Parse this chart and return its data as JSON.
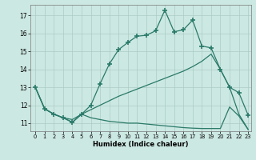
{
  "xlabel": "Humidex (Indice chaleur)",
  "background_color": "#cce8e2",
  "grid_color": "#aaccC4",
  "line_color": "#2a7a6a",
  "xlim_min": -0.5,
  "xlim_max": 23.3,
  "ylim_min": 10.55,
  "ylim_max": 17.6,
  "yticks": [
    11,
    12,
    13,
    14,
    15,
    16,
    17
  ],
  "xticks": [
    0,
    1,
    2,
    3,
    4,
    5,
    6,
    7,
    8,
    9,
    10,
    11,
    12,
    13,
    14,
    15,
    16,
    17,
    18,
    19,
    20,
    21,
    22,
    23
  ],
  "line1_x": [
    0,
    1,
    2,
    3,
    4,
    5,
    6,
    7,
    8,
    9,
    10,
    11,
    12,
    13,
    14,
    15,
    16,
    17,
    18,
    19,
    20,
    21,
    22,
    23
  ],
  "line1_y": [
    13.0,
    11.8,
    11.5,
    11.3,
    11.05,
    11.5,
    12.0,
    13.2,
    14.3,
    15.1,
    15.5,
    15.85,
    15.9,
    16.15,
    17.3,
    16.1,
    16.2,
    16.75,
    15.3,
    15.2,
    14.0,
    13.0,
    12.7,
    11.45
  ],
  "line2_x": [
    0,
    1,
    2,
    3,
    4,
    5,
    6,
    7,
    8,
    9,
    10,
    11,
    12,
    13,
    14,
    15,
    16,
    17,
    18,
    19,
    20,
    21,
    22,
    23
  ],
  "line2_y": [
    13.0,
    11.8,
    11.5,
    11.3,
    11.2,
    11.5,
    11.75,
    12.0,
    12.25,
    12.5,
    12.7,
    12.9,
    13.1,
    13.3,
    13.5,
    13.7,
    13.9,
    14.15,
    14.45,
    14.85,
    14.0,
    13.0,
    11.5,
    10.65
  ],
  "line3_x": [
    0,
    1,
    2,
    3,
    4,
    5,
    6,
    7,
    8,
    9,
    10,
    11,
    12,
    13,
    14,
    15,
    16,
    17,
    18,
    19,
    20,
    21,
    22,
    23
  ],
  "line3_y": [
    13.0,
    11.8,
    11.5,
    11.3,
    11.05,
    11.5,
    11.3,
    11.2,
    11.1,
    11.05,
    11.0,
    11.0,
    10.95,
    10.9,
    10.85,
    10.8,
    10.75,
    10.72,
    10.7,
    10.7,
    10.7,
    11.9,
    11.4,
    10.65
  ]
}
